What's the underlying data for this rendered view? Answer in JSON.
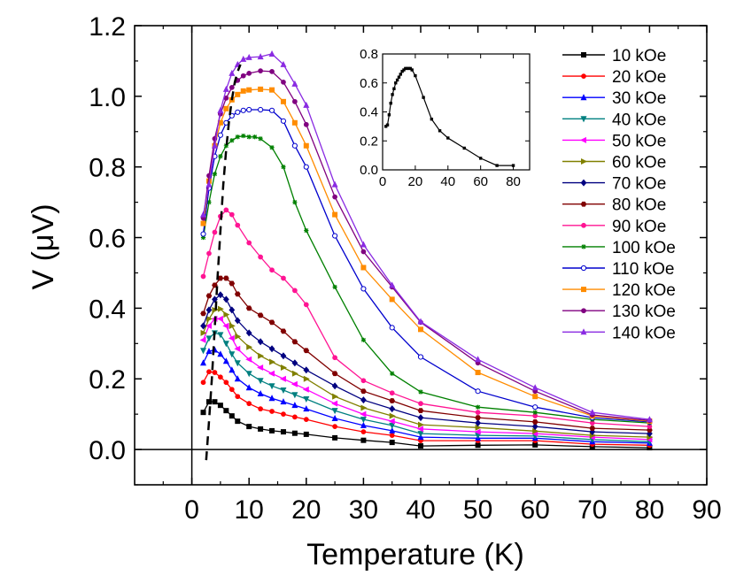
{
  "chart_data": {
    "type": "line",
    "title": "",
    "xlabel": "Temperature (K)",
    "ylabel": "V (μV)",
    "xlim": [
      -10,
      90
    ],
    "ylim": [
      -0.1,
      1.2
    ],
    "xticks": [
      "0",
      "10",
      "20",
      "30",
      "40",
      "50",
      "60",
      "70",
      "80",
      "90"
    ],
    "yticks": [
      "0.0",
      "0.2",
      "0.4",
      "0.6",
      "0.8",
      "1.0",
      "1.2"
    ],
    "legend_position": "top-right",
    "zero_lines": true,
    "series": [
      {
        "name": "10 kOe",
        "color": "#000000",
        "marker": "square",
        "x": [
          2,
          3,
          4,
          5,
          6,
          7,
          8,
          10,
          12,
          14,
          16,
          18,
          20,
          25,
          30,
          35,
          40,
          50,
          60,
          70,
          80
        ],
        "y": [
          0.105,
          0.135,
          0.135,
          0.125,
          0.11,
          0.095,
          0.08,
          0.065,
          0.058,
          0.053,
          0.05,
          0.046,
          0.043,
          0.033,
          0.026,
          0.02,
          0.01,
          0.012,
          0.013,
          0.008,
          0.005
        ]
      },
      {
        "name": "20 kOe",
        "color": "#ff0000",
        "marker": "circle",
        "x": [
          2,
          3,
          4,
          5,
          6,
          7,
          8,
          10,
          12,
          14,
          16,
          18,
          20,
          25,
          30,
          35,
          40,
          50,
          60,
          70,
          80
        ],
        "y": [
          0.19,
          0.22,
          0.218,
          0.205,
          0.19,
          0.17,
          0.15,
          0.13,
          0.115,
          0.108,
          0.1,
          0.092,
          0.085,
          0.065,
          0.05,
          0.04,
          0.025,
          0.025,
          0.025,
          0.015,
          0.012
        ]
      },
      {
        "name": "30 kOe",
        "color": "#0000ff",
        "marker": "triangle-up",
        "x": [
          2,
          3,
          4,
          5,
          6,
          7,
          8,
          10,
          12,
          14,
          16,
          18,
          20,
          25,
          30,
          35,
          40,
          50,
          60,
          70,
          80
        ],
        "y": [
          0.245,
          0.278,
          0.282,
          0.27,
          0.25,
          0.225,
          0.2,
          0.175,
          0.158,
          0.145,
          0.135,
          0.125,
          0.115,
          0.088,
          0.068,
          0.053,
          0.035,
          0.032,
          0.032,
          0.022,
          0.018
        ]
      },
      {
        "name": "40 kOe",
        "color": "#008080",
        "marker": "triangle-down",
        "x": [
          2,
          3,
          4,
          5,
          6,
          7,
          8,
          10,
          12,
          14,
          16,
          18,
          20,
          25,
          30,
          35,
          40,
          50,
          60,
          70,
          80
        ],
        "y": [
          0.28,
          0.315,
          0.33,
          0.325,
          0.3,
          0.27,
          0.245,
          0.215,
          0.195,
          0.18,
          0.168,
          0.155,
          0.143,
          0.11,
          0.085,
          0.068,
          0.045,
          0.04,
          0.038,
          0.028,
          0.022
        ]
      },
      {
        "name": "50 kOe",
        "color": "#ff00ff",
        "marker": "triangle-left",
        "x": [
          2,
          3,
          4,
          5,
          6,
          7,
          8,
          10,
          12,
          14,
          16,
          18,
          20,
          25,
          30,
          35,
          40,
          50,
          60,
          70,
          80
        ],
        "y": [
          0.31,
          0.35,
          0.37,
          0.37,
          0.35,
          0.315,
          0.285,
          0.255,
          0.232,
          0.215,
          0.2,
          0.185,
          0.17,
          0.13,
          0.1,
          0.08,
          0.058,
          0.05,
          0.045,
          0.035,
          0.028
        ]
      },
      {
        "name": "60 kOe",
        "color": "#808000",
        "marker": "triangle-right",
        "x": [
          2,
          3,
          4,
          5,
          6,
          7,
          8,
          10,
          12,
          14,
          16,
          18,
          20,
          25,
          30,
          35,
          40,
          50,
          60,
          70,
          80
        ],
        "y": [
          0.33,
          0.37,
          0.395,
          0.398,
          0.382,
          0.35,
          0.32,
          0.29,
          0.265,
          0.248,
          0.232,
          0.215,
          0.2,
          0.15,
          0.118,
          0.095,
          0.07,
          0.062,
          0.052,
          0.04,
          0.035
        ]
      },
      {
        "name": "70 kOe",
        "color": "#000080",
        "marker": "diamond",
        "x": [
          2,
          3,
          4,
          5,
          6,
          7,
          8,
          10,
          12,
          14,
          16,
          18,
          20,
          25,
          30,
          35,
          40,
          50,
          60,
          70,
          80
        ],
        "y": [
          0.35,
          0.395,
          0.425,
          0.438,
          0.425,
          0.395,
          0.365,
          0.33,
          0.305,
          0.285,
          0.265,
          0.245,
          0.225,
          0.18,
          0.14,
          0.115,
          0.09,
          0.075,
          0.065,
          0.05,
          0.045
        ]
      },
      {
        "name": "80 kOe",
        "color": "#800000",
        "marker": "hexagon",
        "x": [
          2,
          3,
          4,
          5,
          6,
          7,
          8,
          10,
          12,
          14,
          16,
          18,
          20,
          25,
          30,
          35,
          40,
          50,
          60,
          70,
          80
        ],
        "y": [
          0.385,
          0.435,
          0.465,
          0.485,
          0.485,
          0.47,
          0.44,
          0.4,
          0.38,
          0.36,
          0.335,
          0.305,
          0.28,
          0.215,
          0.165,
          0.138,
          0.11,
          0.09,
          0.078,
          0.06,
          0.055
        ]
      },
      {
        "name": "90 kOe",
        "color": "#ff1493",
        "marker": "circle",
        "x": [
          2,
          3,
          4,
          5,
          6,
          7,
          8,
          10,
          12,
          14,
          16,
          18,
          20,
          25,
          30,
          35,
          40,
          50,
          60,
          70,
          80
        ],
        "y": [
          0.49,
          0.555,
          0.615,
          0.66,
          0.678,
          0.665,
          0.635,
          0.585,
          0.545,
          0.508,
          0.485,
          0.45,
          0.41,
          0.26,
          0.195,
          0.16,
          0.13,
          0.105,
          0.095,
          0.075,
          0.065
        ]
      },
      {
        "name": "100 kOe",
        "color": "#008000",
        "marker": "star",
        "x": [
          2,
          3,
          4,
          5,
          6,
          7,
          8,
          9,
          10,
          11,
          12,
          14,
          16,
          18,
          20,
          25,
          30,
          35,
          40,
          50,
          60,
          70,
          80
        ],
        "y": [
          0.6,
          0.7,
          0.78,
          0.83,
          0.86,
          0.875,
          0.885,
          0.888,
          0.885,
          0.885,
          0.88,
          0.855,
          0.8,
          0.7,
          0.62,
          0.46,
          0.31,
          0.215,
          0.163,
          0.12,
          0.105,
          0.085,
          0.075
        ]
      },
      {
        "name": "110 kOe",
        "color": "#0000cd",
        "marker": "half-circle",
        "x": [
          2,
          3,
          4,
          5,
          6,
          7,
          8,
          9,
          10,
          12,
          14,
          16,
          18,
          20,
          25,
          30,
          35,
          40,
          50,
          60,
          70,
          80
        ],
        "y": [
          0.61,
          0.74,
          0.83,
          0.89,
          0.925,
          0.945,
          0.955,
          0.96,
          0.962,
          0.962,
          0.96,
          0.93,
          0.86,
          0.8,
          0.605,
          0.455,
          0.345,
          0.262,
          0.165,
          0.12,
          0.09,
          0.078
        ]
      },
      {
        "name": "120 kOe",
        "color": "#ff8c00",
        "marker": "square",
        "x": [
          2,
          3,
          4,
          5,
          6,
          7,
          8,
          9,
          10,
          12,
          14,
          16,
          18,
          20,
          25,
          30,
          35,
          40,
          50,
          60,
          70,
          80
        ],
        "y": [
          0.64,
          0.76,
          0.86,
          0.925,
          0.965,
          0.99,
          1.005,
          1.015,
          1.018,
          1.02,
          1.018,
          0.985,
          0.925,
          0.86,
          0.665,
          0.515,
          0.425,
          0.34,
          0.218,
          0.15,
          0.095,
          0.08
        ]
      },
      {
        "name": "130 kOe",
        "color": "#800080",
        "marker": "circle",
        "x": [
          2,
          3,
          4,
          5,
          6,
          7,
          8,
          9,
          10,
          12,
          14,
          16,
          18,
          20,
          25,
          30,
          35,
          40,
          50,
          60,
          70,
          80
        ],
        "y": [
          0.655,
          0.775,
          0.88,
          0.95,
          0.995,
          1.025,
          1.045,
          1.058,
          1.065,
          1.072,
          1.07,
          1.04,
          0.985,
          0.92,
          0.715,
          0.56,
          0.46,
          0.36,
          0.245,
          0.165,
          0.098,
          0.082
        ]
      },
      {
        "name": "140 kOe",
        "color": "#8a2be2",
        "marker": "triangle-up",
        "x": [
          2,
          3,
          4,
          5,
          6,
          7,
          8,
          9,
          10,
          12,
          14,
          16,
          18,
          20,
          25,
          30,
          35,
          40,
          50,
          60,
          70,
          80
        ],
        "y": [
          0.665,
          0.75,
          0.86,
          0.96,
          1.02,
          1.065,
          1.09,
          1.105,
          1.11,
          1.112,
          1.12,
          1.09,
          1.035,
          0.975,
          0.75,
          0.58,
          0.465,
          0.362,
          0.255,
          0.175,
          0.105,
          0.085
        ]
      }
    ],
    "guide_line": {
      "style": "dashed",
      "color": "#000000",
      "x": [
        2.5,
        3.0,
        3.5,
        4.0,
        4.5,
        5.0,
        5.5,
        6.0,
        6.5,
        7.0,
        7.5,
        8.0,
        8.5
      ],
      "y": [
        -0.03,
        0.08,
        0.2,
        0.34,
        0.49,
        0.62,
        0.75,
        0.85,
        0.93,
        0.99,
        1.04,
        1.07,
        1.09
      ]
    },
    "inset": {
      "type": "line",
      "color": "#000000",
      "marker": "square",
      "xlim": [
        0,
        90
      ],
      "ylim": [
        0,
        0.8
      ],
      "xticks": [
        "0",
        "20",
        "40",
        "60",
        "80"
      ],
      "yticks": [
        "0.0",
        "0.2",
        "0.4",
        "0.6",
        "0.8"
      ],
      "x": [
        2,
        3,
        4,
        5,
        6,
        7,
        8,
        9,
        10,
        11,
        12,
        13,
        14,
        15,
        16,
        17,
        18,
        20,
        25,
        30,
        35,
        40,
        50,
        60,
        70,
        80
      ],
      "y": [
        0.3,
        0.31,
        0.38,
        0.46,
        0.52,
        0.56,
        0.6,
        0.62,
        0.64,
        0.66,
        0.68,
        0.69,
        0.7,
        0.7,
        0.7,
        0.7,
        0.69,
        0.65,
        0.5,
        0.35,
        0.27,
        0.22,
        0.15,
        0.08,
        0.03,
        0.03
      ]
    }
  }
}
